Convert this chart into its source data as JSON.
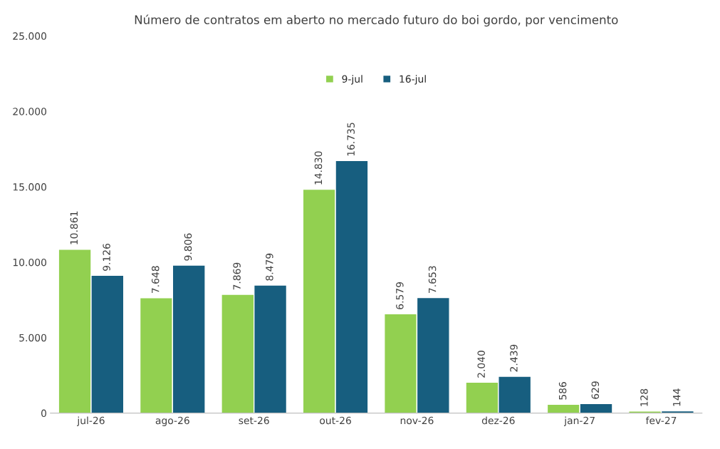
{
  "chart_data": {
    "type": "bar",
    "title": "Número de contratos em aberto no mercado futuro do boi gordo, por vencimento",
    "categories": [
      "jul-26",
      "ago-26",
      "set-26",
      "out-26",
      "nov-26",
      "dez-26",
      "jan-27",
      "fev-27"
    ],
    "series": [
      {
        "name": "9-jul",
        "color": "#92d050",
        "values": [
          10861,
          7648,
          7869,
          14830,
          6579,
          2040,
          586,
          128
        ],
        "value_labels": [
          "10.861",
          "7.648",
          "7.869",
          "14.830",
          "6.579",
          "2.040",
          "586",
          "128"
        ]
      },
      {
        "name": "16-jul",
        "color": "#175e7f",
        "values": [
          9126,
          9806,
          8479,
          16735,
          7653,
          2439,
          629,
          144
        ],
        "value_labels": [
          "9.126",
          "9.806",
          "8.479",
          "16.735",
          "7.653",
          "2.439",
          "629",
          "144"
        ]
      }
    ],
    "ylim": [
      0,
      25000
    ],
    "yticks": [
      {
        "value": 0,
        "label": "0"
      },
      {
        "value": 5000,
        "label": "5.000"
      },
      {
        "value": 10000,
        "label": "10.000"
      },
      {
        "value": 15000,
        "label": "15.000"
      },
      {
        "value": 20000,
        "label": "20.000"
      },
      {
        "value": 25000,
        "label": "25.000"
      }
    ],
    "grid": false,
    "legend": "top"
  }
}
